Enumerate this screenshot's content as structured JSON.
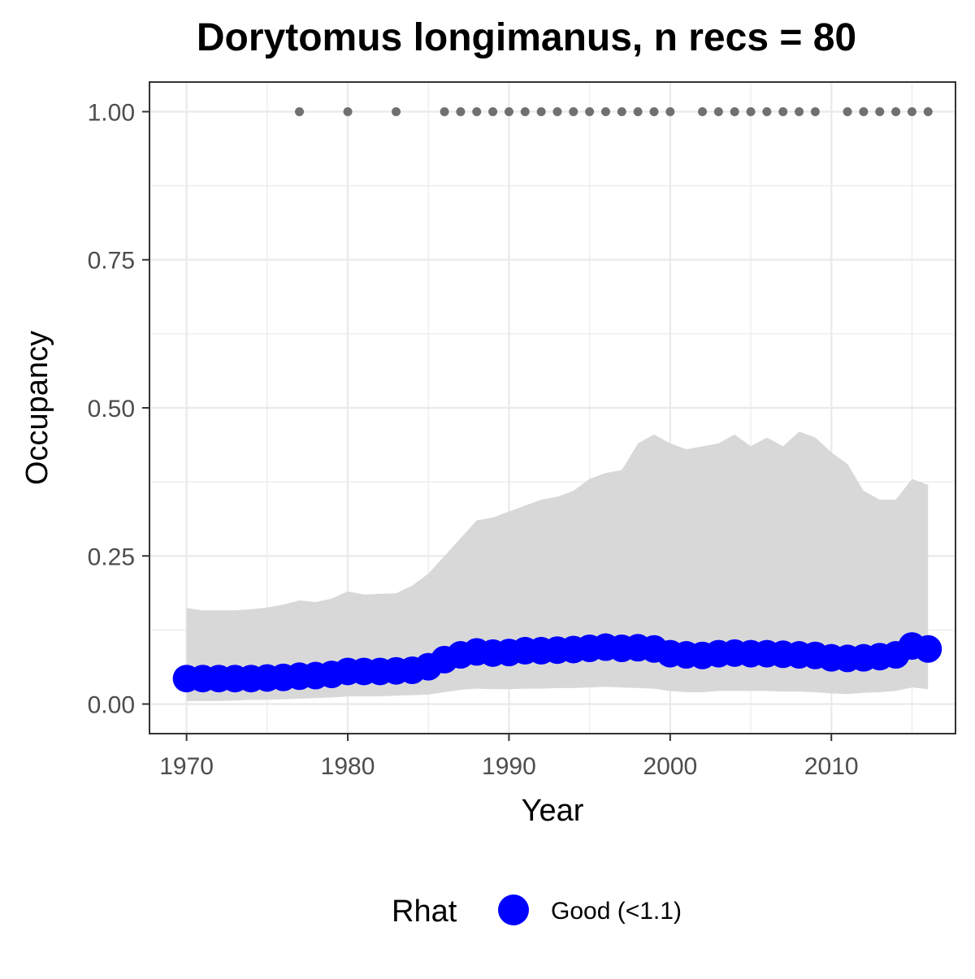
{
  "chart_data": {
    "type": "line",
    "title": "Dorytomus longimanus, n recs = 80",
    "xlabel": "Year",
    "ylabel": "Occupancy",
    "xlim": [
      1967.7,
      2017.7
    ],
    "ylim": [
      -0.05,
      1.05
    ],
    "xticks": [
      1970,
      1980,
      1990,
      2000,
      2010
    ],
    "xtick_labels": [
      "1970",
      "1980",
      "1990",
      "2000",
      "2010"
    ],
    "yticks": [
      0,
      0.25,
      0.5,
      0.75,
      1.0
    ],
    "ytick_labels": [
      "0.00",
      "0.25",
      "0.50",
      "0.75",
      "1.00"
    ],
    "grid": true,
    "legend_position": "bottom",
    "legend": {
      "title": "Rhat",
      "entries": [
        {
          "label": "Good (<1.1)",
          "color": "#0000ff"
        }
      ]
    },
    "colors": {
      "estimate": "#0000ff",
      "ribbon": "#d6d6d6",
      "records": "#707070",
      "grid": "#ebebeb",
      "panel_border": "#333333"
    },
    "x": [
      1970,
      1971,
      1972,
      1973,
      1974,
      1975,
      1976,
      1977,
      1978,
      1979,
      1980,
      1981,
      1982,
      1983,
      1984,
      1985,
      1986,
      1987,
      1988,
      1989,
      1990,
      1991,
      1992,
      1993,
      1994,
      1995,
      1996,
      1997,
      1998,
      1999,
      2000,
      2001,
      2002,
      2003,
      2004,
      2005,
      2006,
      2007,
      2008,
      2009,
      2010,
      2011,
      2012,
      2013,
      2014,
      2015,
      2016
    ],
    "series": [
      {
        "name": "Good (<1.1)",
        "type": "points",
        "values": [
          0.043,
          0.043,
          0.043,
          0.043,
          0.043,
          0.044,
          0.045,
          0.047,
          0.048,
          0.05,
          0.055,
          0.055,
          0.055,
          0.056,
          0.057,
          0.063,
          0.075,
          0.083,
          0.088,
          0.086,
          0.087,
          0.09,
          0.09,
          0.091,
          0.092,
          0.094,
          0.096,
          0.094,
          0.095,
          0.093,
          0.085,
          0.083,
          0.082,
          0.085,
          0.086,
          0.085,
          0.085,
          0.084,
          0.083,
          0.082,
          0.078,
          0.077,
          0.078,
          0.08,
          0.083,
          0.098,
          0.093
        ]
      },
      {
        "type": "ribbon",
        "lower": [
          0.005,
          0.005,
          0.005,
          0.006,
          0.007,
          0.007,
          0.008,
          0.009,
          0.01,
          0.011,
          0.013,
          0.013,
          0.013,
          0.014,
          0.015,
          0.016,
          0.02,
          0.024,
          0.026,
          0.025,
          0.025,
          0.026,
          0.026,
          0.027,
          0.027,
          0.028,
          0.029,
          0.028,
          0.027,
          0.026,
          0.022,
          0.02,
          0.02,
          0.022,
          0.022,
          0.022,
          0.022,
          0.021,
          0.021,
          0.02,
          0.018,
          0.017,
          0.019,
          0.02,
          0.022,
          0.028,
          0.025
        ],
        "upper": [
          0.162,
          0.158,
          0.158,
          0.158,
          0.16,
          0.163,
          0.168,
          0.175,
          0.172,
          0.178,
          0.19,
          0.185,
          0.186,
          0.187,
          0.2,
          0.22,
          0.25,
          0.28,
          0.31,
          0.315,
          0.325,
          0.335,
          0.345,
          0.35,
          0.36,
          0.38,
          0.39,
          0.395,
          0.44,
          0.455,
          0.44,
          0.43,
          0.435,
          0.44,
          0.455,
          0.435,
          0.45,
          0.435,
          0.46,
          0.45,
          0.425,
          0.405,
          0.36,
          0.345,
          0.345,
          0.38,
          0.37
        ]
      },
      {
        "name": "records",
        "type": "points",
        "x": [
          1977,
          1980,
          1983,
          1986,
          1987,
          1988,
          1989,
          1990,
          1991,
          1992,
          1993,
          1994,
          1995,
          1996,
          1997,
          1998,
          1999,
          2000,
          2002,
          2003,
          2004,
          2005,
          2006,
          2007,
          2008,
          2009,
          2011,
          2012,
          2013,
          2014,
          2015,
          2016
        ],
        "values": [
          1,
          1,
          1,
          1,
          1,
          1,
          1,
          1,
          1,
          1,
          1,
          1,
          1,
          1,
          1,
          1,
          1,
          1,
          1,
          1,
          1,
          1,
          1,
          1,
          1,
          1,
          1,
          1,
          1,
          1,
          1,
          1
        ]
      }
    ]
  }
}
